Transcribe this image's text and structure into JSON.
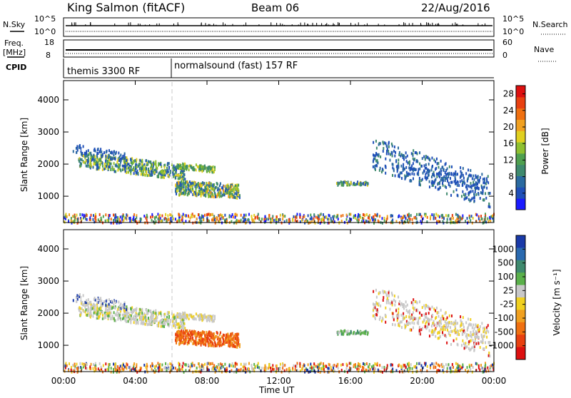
{
  "header": {
    "site": "King Salmon (fitACF)",
    "beam": "Beam 06",
    "date": "22/Aug/2016"
  },
  "panels": {
    "nsky_label": "N.Sky",
    "nsearch_label": "N.Search",
    "freq_label_1": "Freq.",
    "freq_label_2": "[MHz]",
    "nave_label": "Nave",
    "cpid_label": "CPID",
    "nsky_ticks": [
      "10^5",
      "10^0"
    ],
    "nsearch_ticks": [
      "10^5",
      "10^0"
    ],
    "freq_ticks": [
      "18",
      "8"
    ],
    "nave_ticks": [
      "60",
      "0"
    ],
    "cpid_segments": [
      {
        "label": "themis 3300 RF",
        "start_hour": 0
      },
      {
        "label": "normalsound (fast) 157 RF",
        "start_hour": 6
      }
    ]
  },
  "colors": {
    "power": [
      "#1a1aff",
      "#1f4fb8",
      "#2a6aa0",
      "#3f8a6e",
      "#4fa04f",
      "#8fc030",
      "#e0d020",
      "#f0a020",
      "#f07010",
      "#e84010",
      "#dd1010"
    ],
    "velocity": [
      "#1a3aa8",
      "#2a6ab0",
      "#3f8a6e",
      "#5ab04a",
      "#c8c8c8",
      "#f0d020",
      "#f0a020",
      "#f07010",
      "#e84010",
      "#dd1010"
    ]
  },
  "chart_data": [
    {
      "type": "heatmap",
      "name": "power",
      "xlabel": "",
      "ylabel": "Slant Range [km]",
      "x_ticks": [
        "00:00",
        "04:00",
        "08:00",
        "12:00",
        "16:00",
        "20:00",
        "00:00"
      ],
      "xlim_hours": [
        0,
        24
      ],
      "ylim": [
        180,
        4600
      ],
      "y_ticks": [
        1000,
        2000,
        3000,
        4000
      ],
      "colorbar_label": "Power [dB]",
      "colorbar_ticks": [
        4,
        8,
        12,
        16,
        20,
        24,
        28
      ],
      "colorbar_range": [
        0,
        30
      ]
    },
    {
      "type": "heatmap",
      "name": "velocity",
      "xlabel": "Time UT",
      "ylabel": "Slant Range [km]",
      "x_ticks": [
        "00:00",
        "04:00",
        "08:00",
        "12:00",
        "16:00",
        "20:00",
        "00:00"
      ],
      "xlim_hours": [
        0,
        24
      ],
      "ylim": [
        180,
        4600
      ],
      "y_ticks": [
        1000,
        2000,
        3000,
        4000
      ],
      "colorbar_label": "Velocity [m s⁻¹]",
      "colorbar_ticks": [
        "1000",
        "500",
        "100",
        "25",
        "-25",
        "-100",
        "-500",
        "-1000"
      ]
    }
  ]
}
